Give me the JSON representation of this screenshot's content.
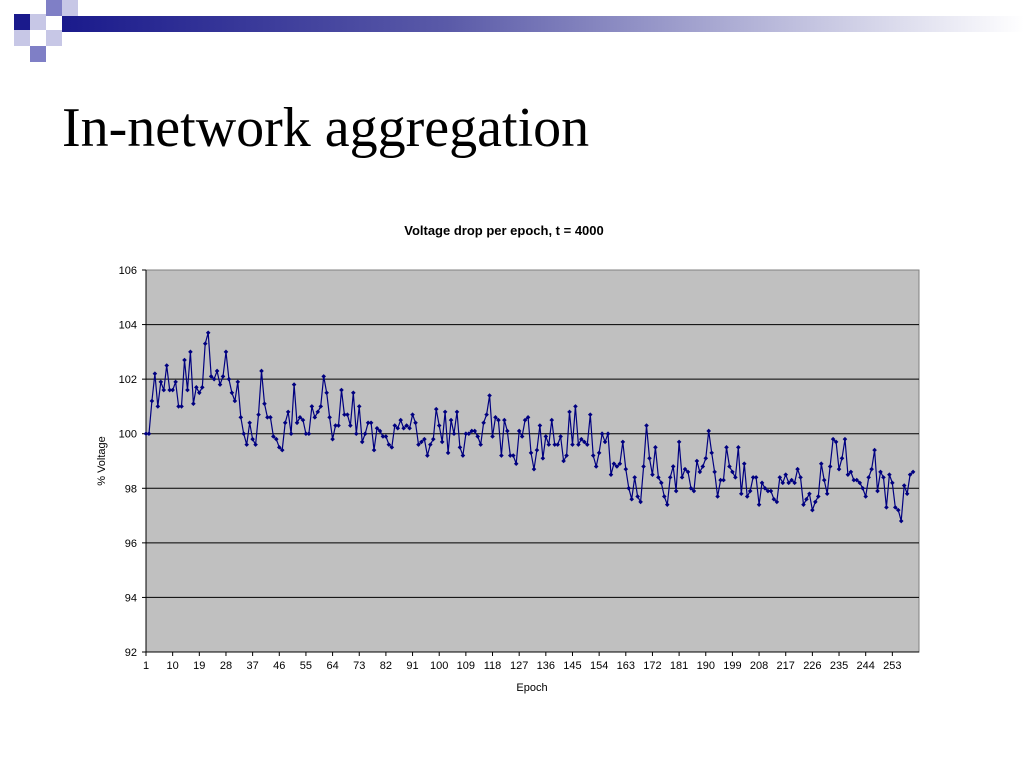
{
  "slide": {
    "title": "In-network aggregation",
    "colors": {
      "deco_dark": "#1a1a8c",
      "deco_mid": "#7f7fc6",
      "deco_light": "#c7c7e6"
    }
  },
  "chart_data": {
    "type": "line",
    "title": "Voltage drop per epoch, t = 4000",
    "xlabel": "Epoch",
    "ylabel": "% Voltage",
    "ylim": [
      92,
      106
    ],
    "yticks": [
      92,
      94,
      96,
      98,
      100,
      102,
      104,
      106
    ],
    "xticks": [
      1,
      10,
      19,
      28,
      37,
      46,
      55,
      64,
      73,
      82,
      91,
      100,
      109,
      118,
      127,
      136,
      145,
      154,
      163,
      172,
      181,
      190,
      199,
      208,
      217,
      226,
      235,
      244,
      253
    ],
    "xlim": [
      1,
      262
    ],
    "grid": "horizontal",
    "plot_background": "#c0c0c0",
    "series_color": "#000080",
    "series": [
      {
        "name": "",
        "x_start": 1,
        "values": [
          100.0,
          100.0,
          101.2,
          102.2,
          101.0,
          101.9,
          101.6,
          102.5,
          101.6,
          101.6,
          101.9,
          101.0,
          101.0,
          102.7,
          101.6,
          103.0,
          101.1,
          101.7,
          101.5,
          101.7,
          103.3,
          103.7,
          102.1,
          102.0,
          102.3,
          101.8,
          102.1,
          103.0,
          102.0,
          101.5,
          101.2,
          101.9,
          100.6,
          100.0,
          99.6,
          100.4,
          99.8,
          99.6,
          100.7,
          102.3,
          101.1,
          100.6,
          100.6,
          99.9,
          99.8,
          99.5,
          99.4,
          100.4,
          100.8,
          100.0,
          101.8,
          100.4,
          100.6,
          100.5,
          100.0,
          100.0,
          101.0,
          100.6,
          100.8,
          101.0,
          102.1,
          101.5,
          100.6,
          99.8,
          100.3,
          100.3,
          101.6,
          100.7,
          100.7,
          100.3,
          101.5,
          100.0,
          101.0,
          99.7,
          100.0,
          100.4,
          100.4,
          99.4,
          100.2,
          100.1,
          99.9,
          99.9,
          99.6,
          99.5,
          100.3,
          100.2,
          100.5,
          100.2,
          100.3,
          100.2,
          100.7,
          100.4,
          99.6,
          99.7,
          99.8,
          99.2,
          99.6,
          99.8,
          100.9,
          100.3,
          99.7,
          100.8,
          99.3,
          100.5,
          100.0,
          100.8,
          99.5,
          99.2,
          100.0,
          100.0,
          100.1,
          100.1,
          99.9,
          99.6,
          100.4,
          100.7,
          101.4,
          99.9,
          100.6,
          100.5,
          99.2,
          100.5,
          100.1,
          99.2,
          99.2,
          98.9,
          100.1,
          99.9,
          100.5,
          100.6,
          99.3,
          98.7,
          99.4,
          100.3,
          99.1,
          99.9,
          99.6,
          100.5,
          99.6,
          99.6,
          99.9,
          99.0,
          99.2,
          100.8,
          99.6,
          101.0,
          99.6,
          99.8,
          99.7,
          99.6,
          100.7,
          99.2,
          98.8,
          99.3,
          100.0,
          99.7,
          100.0,
          98.5,
          98.9,
          98.8,
          98.9,
          99.7,
          98.7,
          98.0,
          97.6,
          98.4,
          97.7,
          97.5,
          98.8,
          100.3,
          99.1,
          98.5,
          99.5,
          98.4,
          98.2,
          97.7,
          97.4,
          98.4,
          98.8,
          97.9,
          99.7,
          98.4,
          98.7,
          98.6,
          98.0,
          97.9,
          99.0,
          98.6,
          98.8,
          99.1,
          100.1,
          99.3,
          98.6,
          97.7,
          98.3,
          98.3,
          99.5,
          98.8,
          98.6,
          98.4,
          99.5,
          97.8,
          98.9,
          97.7,
          97.9,
          98.4,
          98.4,
          97.4,
          98.2,
          98.0,
          97.9,
          97.9,
          97.6,
          97.5,
          98.4,
          98.2,
          98.5,
          98.2,
          98.3,
          98.2,
          98.7,
          98.4,
          97.4,
          97.6,
          97.8,
          97.2,
          97.5,
          97.7,
          98.9,
          98.3,
          97.8,
          98.8,
          99.8,
          99.7,
          98.7,
          99.1,
          99.8,
          98.5,
          98.6,
          98.3,
          98.3,
          98.2,
          98.0,
          97.7,
          98.4,
          98.7,
          99.4,
          97.9,
          98.6,
          98.4,
          97.3,
          98.5,
          98.2,
          97.3,
          97.2,
          96.8,
          98.1,
          97.8,
          98.5,
          98.6
        ]
      }
    ]
  }
}
